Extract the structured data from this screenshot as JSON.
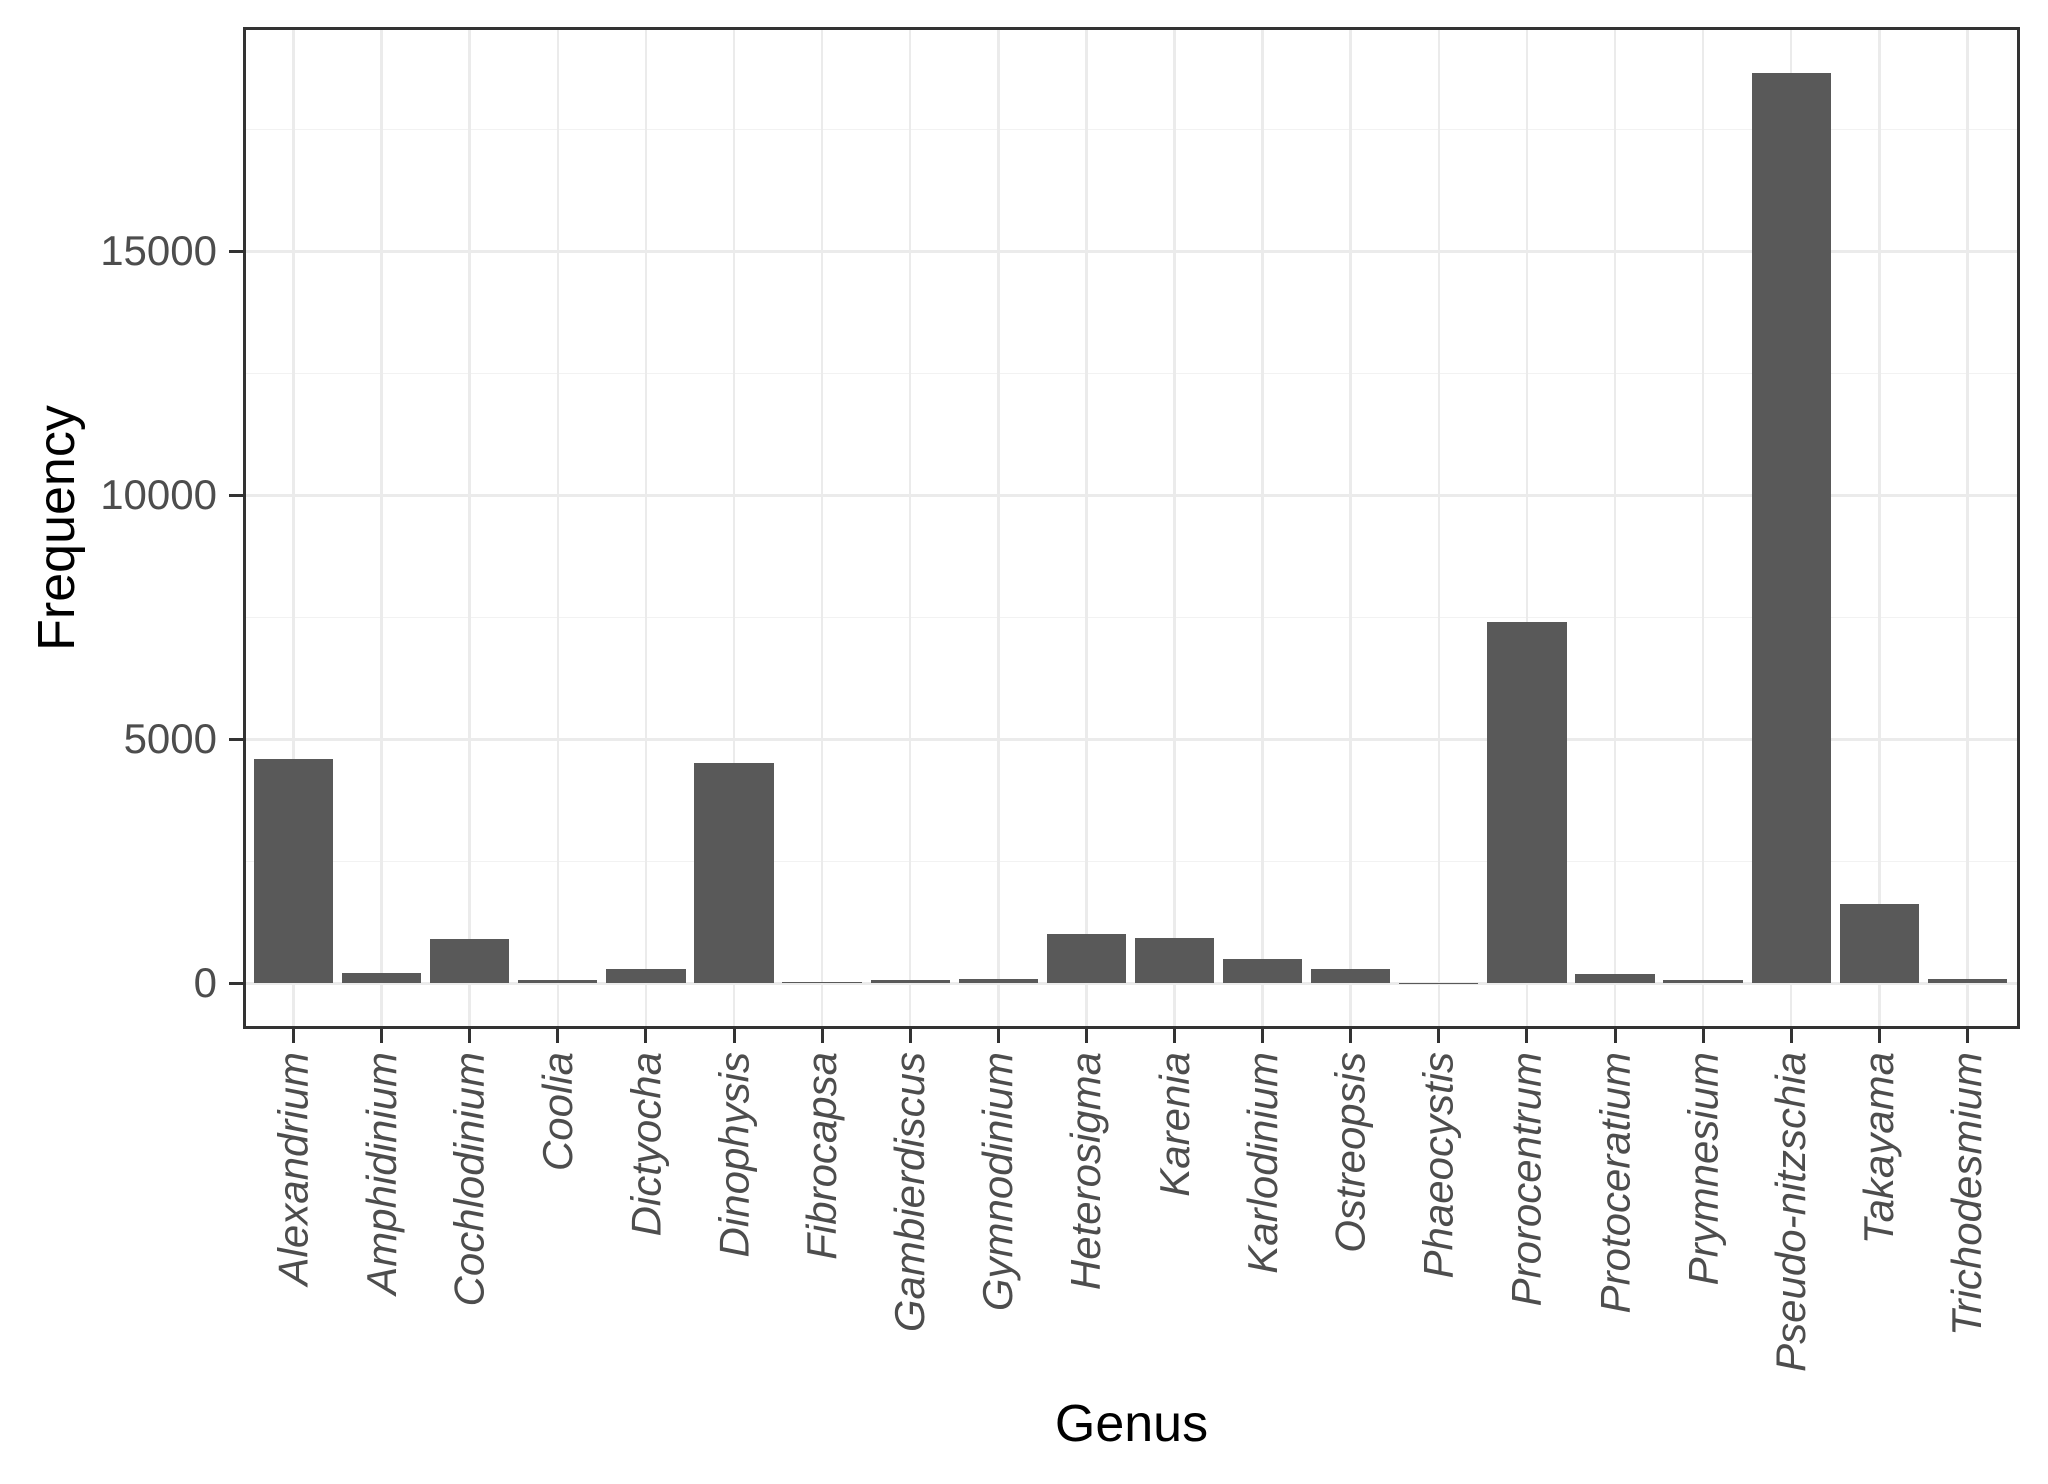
{
  "chart_data": {
    "type": "bar",
    "title": "",
    "xlabel": "Genus",
    "ylabel": "Frequency",
    "categories": [
      "Alexandrium",
      "Amphidinium",
      "Cochlodinium",
      "Coolia",
      "Dictyocha",
      "Dinophysis",
      "Fibrocapsa",
      "Gambierdiscus",
      "Gymnodinium",
      "Heterosigma",
      "Karenia",
      "Karlodinium",
      "Ostreopsis",
      "Phaeocystis",
      "Prorocentrum",
      "Protoceratium",
      "Prymnesium",
      "Pseudo-nitzschia",
      "Takayama",
      "Trichodesmium"
    ],
    "values": [
      4600,
      210,
      900,
      60,
      290,
      4520,
      25,
      65,
      90,
      1010,
      920,
      500,
      300,
      5,
      7400,
      190,
      75,
      18650,
      1620,
      80
    ],
    "yticks": [
      0,
      5000,
      10000,
      15000
    ],
    "ytick_labels": [
      "0",
      "5000",
      "10000",
      "15000"
    ],
    "minor_yticks": [
      2500,
      7500,
      12500,
      17500
    ],
    "ylim": [
      0,
      19600
    ],
    "grid": "horizontal major+minor, vertical major at category centers",
    "legend": "none",
    "bar_orientation": "vertical"
  },
  "colors": {
    "background": "#FFFFFF",
    "bar_fill": "#595959",
    "panel_border": "#333333",
    "grid_major": "#EBEBEB",
    "grid_minor": "#F2F2F2",
    "tick_mark": "#333333",
    "tick_label": "#4D4D4D",
    "axis_title": "#000000"
  }
}
